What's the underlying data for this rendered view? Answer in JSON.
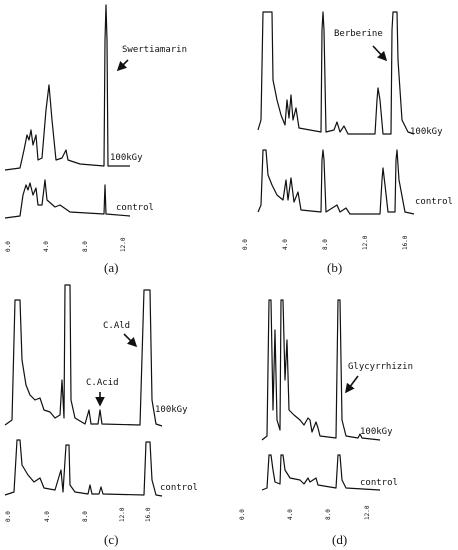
{
  "panels": [
    {
      "caption": "(a)",
      "annotations": [
        "Swertiamarin"
      ],
      "traces": [
        "100kGy",
        "control"
      ],
      "ticks": [
        "0.0",
        "4.0",
        "8.0",
        "12.0"
      ]
    },
    {
      "caption": "(b)",
      "annotations": [
        "Berberine"
      ],
      "traces": [
        "100kGy",
        "control"
      ],
      "ticks": [
        "0.0",
        "4.0",
        "8.0",
        "12.0",
        "16.0"
      ]
    },
    {
      "caption": "(c)",
      "annotations": [
        "C.Ald",
        "C.Acid"
      ],
      "traces": [
        "100kGy",
        "control"
      ],
      "ticks": [
        "0.0",
        "4.0",
        "8.0",
        "12.0",
        "16.0"
      ]
    },
    {
      "caption": "(d)",
      "annotations": [
        "Glycyrrhizin"
      ],
      "traces": [
        "100kGy",
        "control"
      ],
      "ticks": [
        "0.0",
        "4.0",
        "8.0",
        "12.0"
      ]
    }
  ]
}
